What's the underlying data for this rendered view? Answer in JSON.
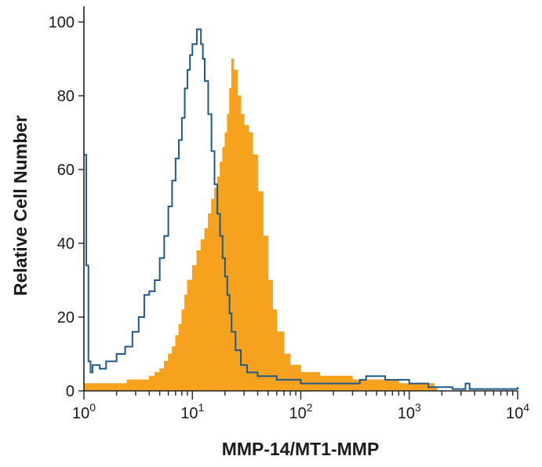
{
  "chart_data": {
    "type": "histogram",
    "xlabel": "MMP-14/MT1-MMP",
    "ylabel": "Relative Cell Number",
    "x_scale": "log",
    "xlim": [
      1,
      10000
    ],
    "ylim": [
      0,
      100
    ],
    "x_ticks": [
      {
        "base": "10",
        "exp": "0",
        "value": 1
      },
      {
        "base": "10",
        "exp": "1",
        "value": 10
      },
      {
        "base": "10",
        "exp": "2",
        "value": 100
      },
      {
        "base": "10",
        "exp": "3",
        "value": 1000
      },
      {
        "base": "10",
        "exp": "4",
        "value": 10000
      }
    ],
    "y_ticks": [
      "0",
      "20",
      "40",
      "60",
      "80",
      "100"
    ],
    "grid": false,
    "colors": {
      "filled": "#f6a21e",
      "outline": "#1f5a85"
    },
    "series": [
      {
        "style": "filled",
        "points": [
          [
            1.0,
            2
          ],
          [
            1.4,
            2
          ],
          [
            2.0,
            2
          ],
          [
            2.5,
            3
          ],
          [
            3.0,
            3
          ],
          [
            3.5,
            3
          ],
          [
            4.0,
            4
          ],
          [
            4.5,
            5
          ],
          [
            5.0,
            6
          ],
          [
            5.5,
            8
          ],
          [
            6.0,
            10
          ],
          [
            6.5,
            12
          ],
          [
            7.0,
            15
          ],
          [
            7.5,
            18
          ],
          [
            8.0,
            22
          ],
          [
            8.5,
            26
          ],
          [
            9.0,
            30
          ],
          [
            10.0,
            34
          ],
          [
            11.0,
            38
          ],
          [
            12.0,
            41
          ],
          [
            13.0,
            44
          ],
          [
            14.0,
            48
          ],
          [
            15.0,
            52
          ],
          [
            16.0,
            55
          ],
          [
            17.0,
            58
          ],
          [
            18.0,
            62
          ],
          [
            19.0,
            66
          ],
          [
            20.0,
            70
          ],
          [
            21.0,
            75
          ],
          [
            22.0,
            82
          ],
          [
            23.0,
            90
          ],
          [
            24.0,
            87
          ],
          [
            26.0,
            80
          ],
          [
            28.0,
            75
          ],
          [
            30.0,
            72
          ],
          [
            33.0,
            70
          ],
          [
            36.0,
            64
          ],
          [
            40.0,
            54
          ],
          [
            45.0,
            42
          ],
          [
            50.0,
            30
          ],
          [
            55.0,
            22
          ],
          [
            60.0,
            16
          ],
          [
            70.0,
            10
          ],
          [
            80.0,
            7
          ],
          [
            100.0,
            5
          ],
          [
            150.0,
            4
          ],
          [
            200.0,
            4
          ],
          [
            300.0,
            3
          ],
          [
            500.0,
            3
          ],
          [
            800.0,
            2
          ],
          [
            1200.0,
            2
          ],
          [
            1700.0,
            1
          ],
          [
            1800.0,
            0
          ]
        ]
      },
      {
        "style": "outline",
        "points": [
          [
            1.0,
            64
          ],
          [
            1.05,
            34
          ],
          [
            1.1,
            8
          ],
          [
            1.15,
            5
          ],
          [
            1.2,
            7
          ],
          [
            1.4,
            6
          ],
          [
            1.6,
            8
          ],
          [
            2.0,
            10
          ],
          [
            2.4,
            12
          ],
          [
            2.8,
            16
          ],
          [
            3.2,
            20
          ],
          [
            3.6,
            26
          ],
          [
            4.0,
            27
          ],
          [
            4.5,
            30
          ],
          [
            5.0,
            36
          ],
          [
            5.5,
            42
          ],
          [
            6.0,
            50
          ],
          [
            6.5,
            57
          ],
          [
            7.0,
            63
          ],
          [
            7.5,
            68
          ],
          [
            8.0,
            74
          ],
          [
            8.5,
            82
          ],
          [
            9.0,
            87
          ],
          [
            9.5,
            91
          ],
          [
            10.0,
            94
          ],
          [
            11.0,
            98
          ],
          [
            11.5,
            98
          ],
          [
            12.0,
            94
          ],
          [
            12.5,
            90
          ],
          [
            13.0,
            84
          ],
          [
            14.0,
            75
          ],
          [
            15.0,
            65
          ],
          [
            16.0,
            56
          ],
          [
            17.0,
            48
          ],
          [
            18.0,
            42
          ],
          [
            19.0,
            36
          ],
          [
            20.0,
            31
          ],
          [
            21.0,
            26
          ],
          [
            22.0,
            21
          ],
          [
            23.0,
            16
          ],
          [
            25.0,
            11
          ],
          [
            28.0,
            7
          ],
          [
            32.0,
            5
          ],
          [
            40.0,
            4
          ],
          [
            60.0,
            3
          ],
          [
            100.0,
            2
          ],
          [
            150.0,
            2
          ],
          [
            250.0,
            2
          ],
          [
            350.0,
            3
          ],
          [
            400.0,
            4
          ],
          [
            600.0,
            3
          ],
          [
            1000.0,
            2
          ],
          [
            1500.0,
            1
          ],
          [
            2500.0,
            0.5
          ],
          [
            3300.0,
            2
          ],
          [
            3600.0,
            0.5
          ],
          [
            9500.0,
            0.5
          ],
          [
            10000.0,
            1
          ]
        ]
      }
    ]
  }
}
